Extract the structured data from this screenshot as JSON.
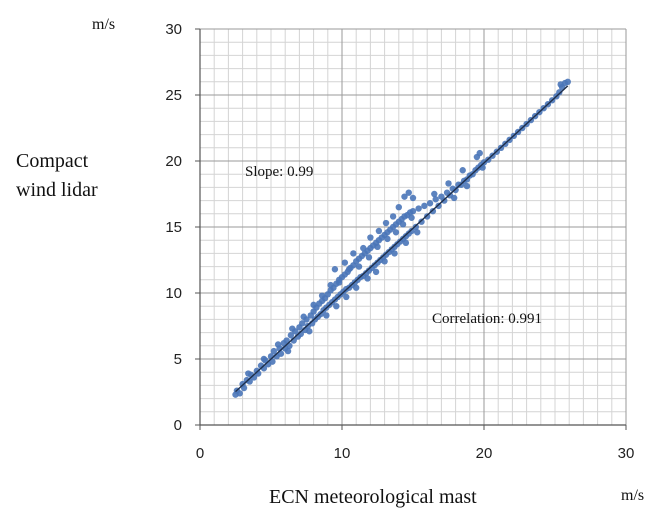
{
  "chart_data": {
    "type": "scatter",
    "title": "",
    "xlabel": "ECN meteorological mast",
    "ylabel": [
      "Compact",
      "wind lidar"
    ],
    "x_unit": "m/s",
    "y_unit": "m/s",
    "xlim": [
      0,
      30
    ],
    "ylim": [
      0,
      30
    ],
    "x_ticks": [
      0,
      10,
      20,
      30
    ],
    "y_ticks": [
      0,
      5,
      10,
      15,
      20,
      25,
      30
    ],
    "grid": true,
    "minor_grid_step": 1,
    "annotations": {
      "slope": "Slope: 0.99",
      "correlation": "Correlation: 0.991"
    },
    "fit_line": {
      "slope": 0.99,
      "intercept": 0.05
    },
    "series": [
      {
        "color": "#4a76b8",
        "points": [
          [
            2.5,
            2.3
          ],
          [
            2.6,
            2.6
          ],
          [
            2.8,
            2.4
          ],
          [
            3.0,
            3.1
          ],
          [
            3.1,
            2.8
          ],
          [
            3.3,
            3.4
          ],
          [
            3.5,
            3.3
          ],
          [
            3.6,
            3.8
          ],
          [
            3.8,
            3.6
          ],
          [
            4.0,
            4.1
          ],
          [
            4.1,
            3.9
          ],
          [
            4.3,
            4.5
          ],
          [
            4.5,
            4.3
          ],
          [
            4.6,
            4.9
          ],
          [
            4.8,
            4.6
          ],
          [
            5.0,
            5.2
          ],
          [
            5.1,
            4.8
          ],
          [
            5.2,
            5.6
          ],
          [
            5.4,
            5.2
          ],
          [
            5.6,
            5.8
          ],
          [
            5.7,
            5.4
          ],
          [
            5.9,
            6.2
          ],
          [
            6.0,
            5.8
          ],
          [
            6.1,
            6.4
          ],
          [
            6.3,
            6.0
          ],
          [
            6.4,
            6.8
          ],
          [
            6.6,
            6.4
          ],
          [
            6.7,
            7.1
          ],
          [
            6.9,
            6.7
          ],
          [
            7.0,
            7.4
          ],
          [
            7.1,
            6.9
          ],
          [
            7.2,
            7.7
          ],
          [
            7.4,
            7.2
          ],
          [
            7.5,
            8.0
          ],
          [
            7.6,
            7.5
          ],
          [
            7.8,
            8.3
          ],
          [
            7.9,
            7.7
          ],
          [
            8.0,
            8.6
          ],
          [
            8.1,
            8.0
          ],
          [
            8.2,
            8.9
          ],
          [
            8.3,
            8.2
          ],
          [
            8.4,
            9.2
          ],
          [
            8.5,
            8.4
          ],
          [
            8.6,
            9.4
          ],
          [
            8.7,
            8.7
          ],
          [
            8.8,
            9.6
          ],
          [
            8.9,
            8.9
          ],
          [
            9.0,
            9.9
          ],
          [
            9.1,
            9.1
          ],
          [
            9.2,
            10.2
          ],
          [
            9.3,
            9.3
          ],
          [
            9.4,
            10.4
          ],
          [
            9.5,
            9.5
          ],
          [
            9.6,
            10.7
          ],
          [
            9.7,
            9.7
          ],
          [
            9.8,
            11.0
          ],
          [
            9.9,
            9.9
          ],
          [
            10.0,
            11.2
          ],
          [
            10.1,
            10.1
          ],
          [
            10.2,
            11.4
          ],
          [
            10.3,
            10.3
          ],
          [
            10.4,
            11.6
          ],
          [
            10.5,
            10.4
          ],
          [
            10.6,
            11.9
          ],
          [
            10.7,
            10.6
          ],
          [
            10.8,
            12.1
          ],
          [
            10.9,
            10.8
          ],
          [
            11.0,
            12.4
          ],
          [
            11.1,
            11.0
          ],
          [
            11.2,
            12.6
          ],
          [
            11.3,
            11.2
          ],
          [
            11.4,
            12.8
          ],
          [
            11.5,
            11.3
          ],
          [
            11.6,
            13.0
          ],
          [
            11.7,
            11.5
          ],
          [
            11.8,
            13.2
          ],
          [
            11.9,
            11.7
          ],
          [
            12.0,
            13.4
          ],
          [
            12.1,
            11.9
          ],
          [
            12.2,
            13.6
          ],
          [
            12.3,
            12.1
          ],
          [
            12.4,
            13.8
          ],
          [
            12.5,
            12.3
          ],
          [
            12.6,
            14.0
          ],
          [
            12.7,
            12.5
          ],
          [
            12.8,
            14.2
          ],
          [
            12.9,
            12.7
          ],
          [
            13.0,
            14.4
          ],
          [
            13.1,
            12.9
          ],
          [
            13.2,
            14.6
          ],
          [
            13.3,
            13.1
          ],
          [
            13.4,
            14.8
          ],
          [
            13.5,
            13.3
          ],
          [
            13.6,
            15.0
          ],
          [
            13.7,
            13.5
          ],
          [
            13.8,
            15.2
          ],
          [
            13.9,
            13.7
          ],
          [
            14.0,
            15.4
          ],
          [
            14.1,
            13.9
          ],
          [
            14.2,
            15.6
          ],
          [
            14.3,
            14.1
          ],
          [
            14.4,
            15.8
          ],
          [
            14.5,
            14.3
          ],
          [
            14.6,
            15.9
          ],
          [
            14.7,
            14.5
          ],
          [
            14.8,
            16.1
          ],
          [
            14.9,
            14.7
          ],
          [
            15.0,
            16.2
          ],
          [
            15.2,
            15.0
          ],
          [
            15.4,
            16.4
          ],
          [
            15.6,
            15.4
          ],
          [
            15.8,
            16.6
          ],
          [
            16.0,
            15.8
          ],
          [
            16.2,
            16.8
          ],
          [
            16.4,
            16.2
          ],
          [
            16.6,
            17.1
          ],
          [
            16.8,
            16.6
          ],
          [
            17.0,
            17.3
          ],
          [
            17.2,
            17.0
          ],
          [
            17.4,
            17.6
          ],
          [
            17.6,
            17.4
          ],
          [
            17.8,
            17.9
          ],
          [
            18.0,
            17.8
          ],
          [
            18.2,
            18.2
          ],
          [
            18.4,
            18.2
          ],
          [
            18.6,
            18.5
          ],
          [
            18.8,
            18.6
          ],
          [
            19.0,
            18.9
          ],
          [
            19.2,
            19.0
          ],
          [
            19.4,
            19.3
          ],
          [
            19.6,
            19.5
          ],
          [
            19.8,
            19.7
          ],
          [
            20.0,
            19.9
          ],
          [
            20.3,
            20.1
          ],
          [
            20.6,
            20.4
          ],
          [
            20.9,
            20.7
          ],
          [
            21.2,
            21.0
          ],
          [
            21.5,
            21.3
          ],
          [
            21.8,
            21.6
          ],
          [
            22.1,
            21.9
          ],
          [
            22.4,
            22.2
          ],
          [
            22.7,
            22.5
          ],
          [
            23.0,
            22.8
          ],
          [
            23.3,
            23.1
          ],
          [
            23.6,
            23.4
          ],
          [
            23.9,
            23.7
          ],
          [
            24.2,
            24.0
          ],
          [
            24.5,
            24.3
          ],
          [
            24.8,
            24.6
          ],
          [
            25.1,
            24.9
          ],
          [
            25.3,
            25.2
          ],
          [
            25.5,
            25.6
          ],
          [
            25.7,
            25.9
          ],
          [
            25.9,
            26.0
          ],
          [
            25.4,
            25.8
          ],
          [
            9.5,
            11.8
          ],
          [
            10.2,
            12.3
          ],
          [
            10.8,
            13.0
          ],
          [
            11.5,
            13.4
          ],
          [
            12.0,
            14.2
          ],
          [
            12.6,
            14.7
          ],
          [
            13.1,
            15.3
          ],
          [
            13.6,
            15.8
          ],
          [
            14.0,
            16.5
          ],
          [
            14.4,
            17.3
          ],
          [
            14.7,
            17.6
          ],
          [
            15.0,
            17.2
          ],
          [
            9.8,
            10.8
          ],
          [
            10.5,
            11.8
          ],
          [
            11.2,
            12.0
          ],
          [
            11.9,
            12.7
          ],
          [
            12.5,
            13.5
          ],
          [
            13.2,
            14.1
          ],
          [
            13.8,
            14.6
          ],
          [
            14.3,
            15.2
          ],
          [
            14.9,
            15.7
          ],
          [
            8.6,
            9.8
          ],
          [
            9.2,
            10.6
          ],
          [
            8.9,
            8.3
          ],
          [
            9.6,
            9.0
          ],
          [
            10.3,
            9.7
          ],
          [
            11.0,
            10.4
          ],
          [
            11.8,
            11.1
          ],
          [
            12.4,
            11.6
          ],
          [
            13.0,
            12.4
          ],
          [
            13.7,
            13.0
          ],
          [
            14.5,
            13.8
          ],
          [
            15.3,
            14.6
          ],
          [
            6.5,
            7.3
          ],
          [
            7.3,
            8.2
          ],
          [
            8.0,
            9.1
          ],
          [
            5.5,
            6.1
          ],
          [
            4.5,
            5.0
          ],
          [
            3.4,
            3.9
          ],
          [
            6.2,
            5.6
          ],
          [
            7.7,
            7.1
          ],
          [
            16.5,
            17.5
          ],
          [
            17.5,
            18.3
          ],
          [
            18.5,
            19.3
          ],
          [
            19.5,
            20.3
          ],
          [
            19.7,
            20.6
          ],
          [
            18.8,
            18.1
          ],
          [
            17.9,
            17.2
          ],
          [
            19.9,
            19.5
          ]
        ]
      }
    ]
  }
}
